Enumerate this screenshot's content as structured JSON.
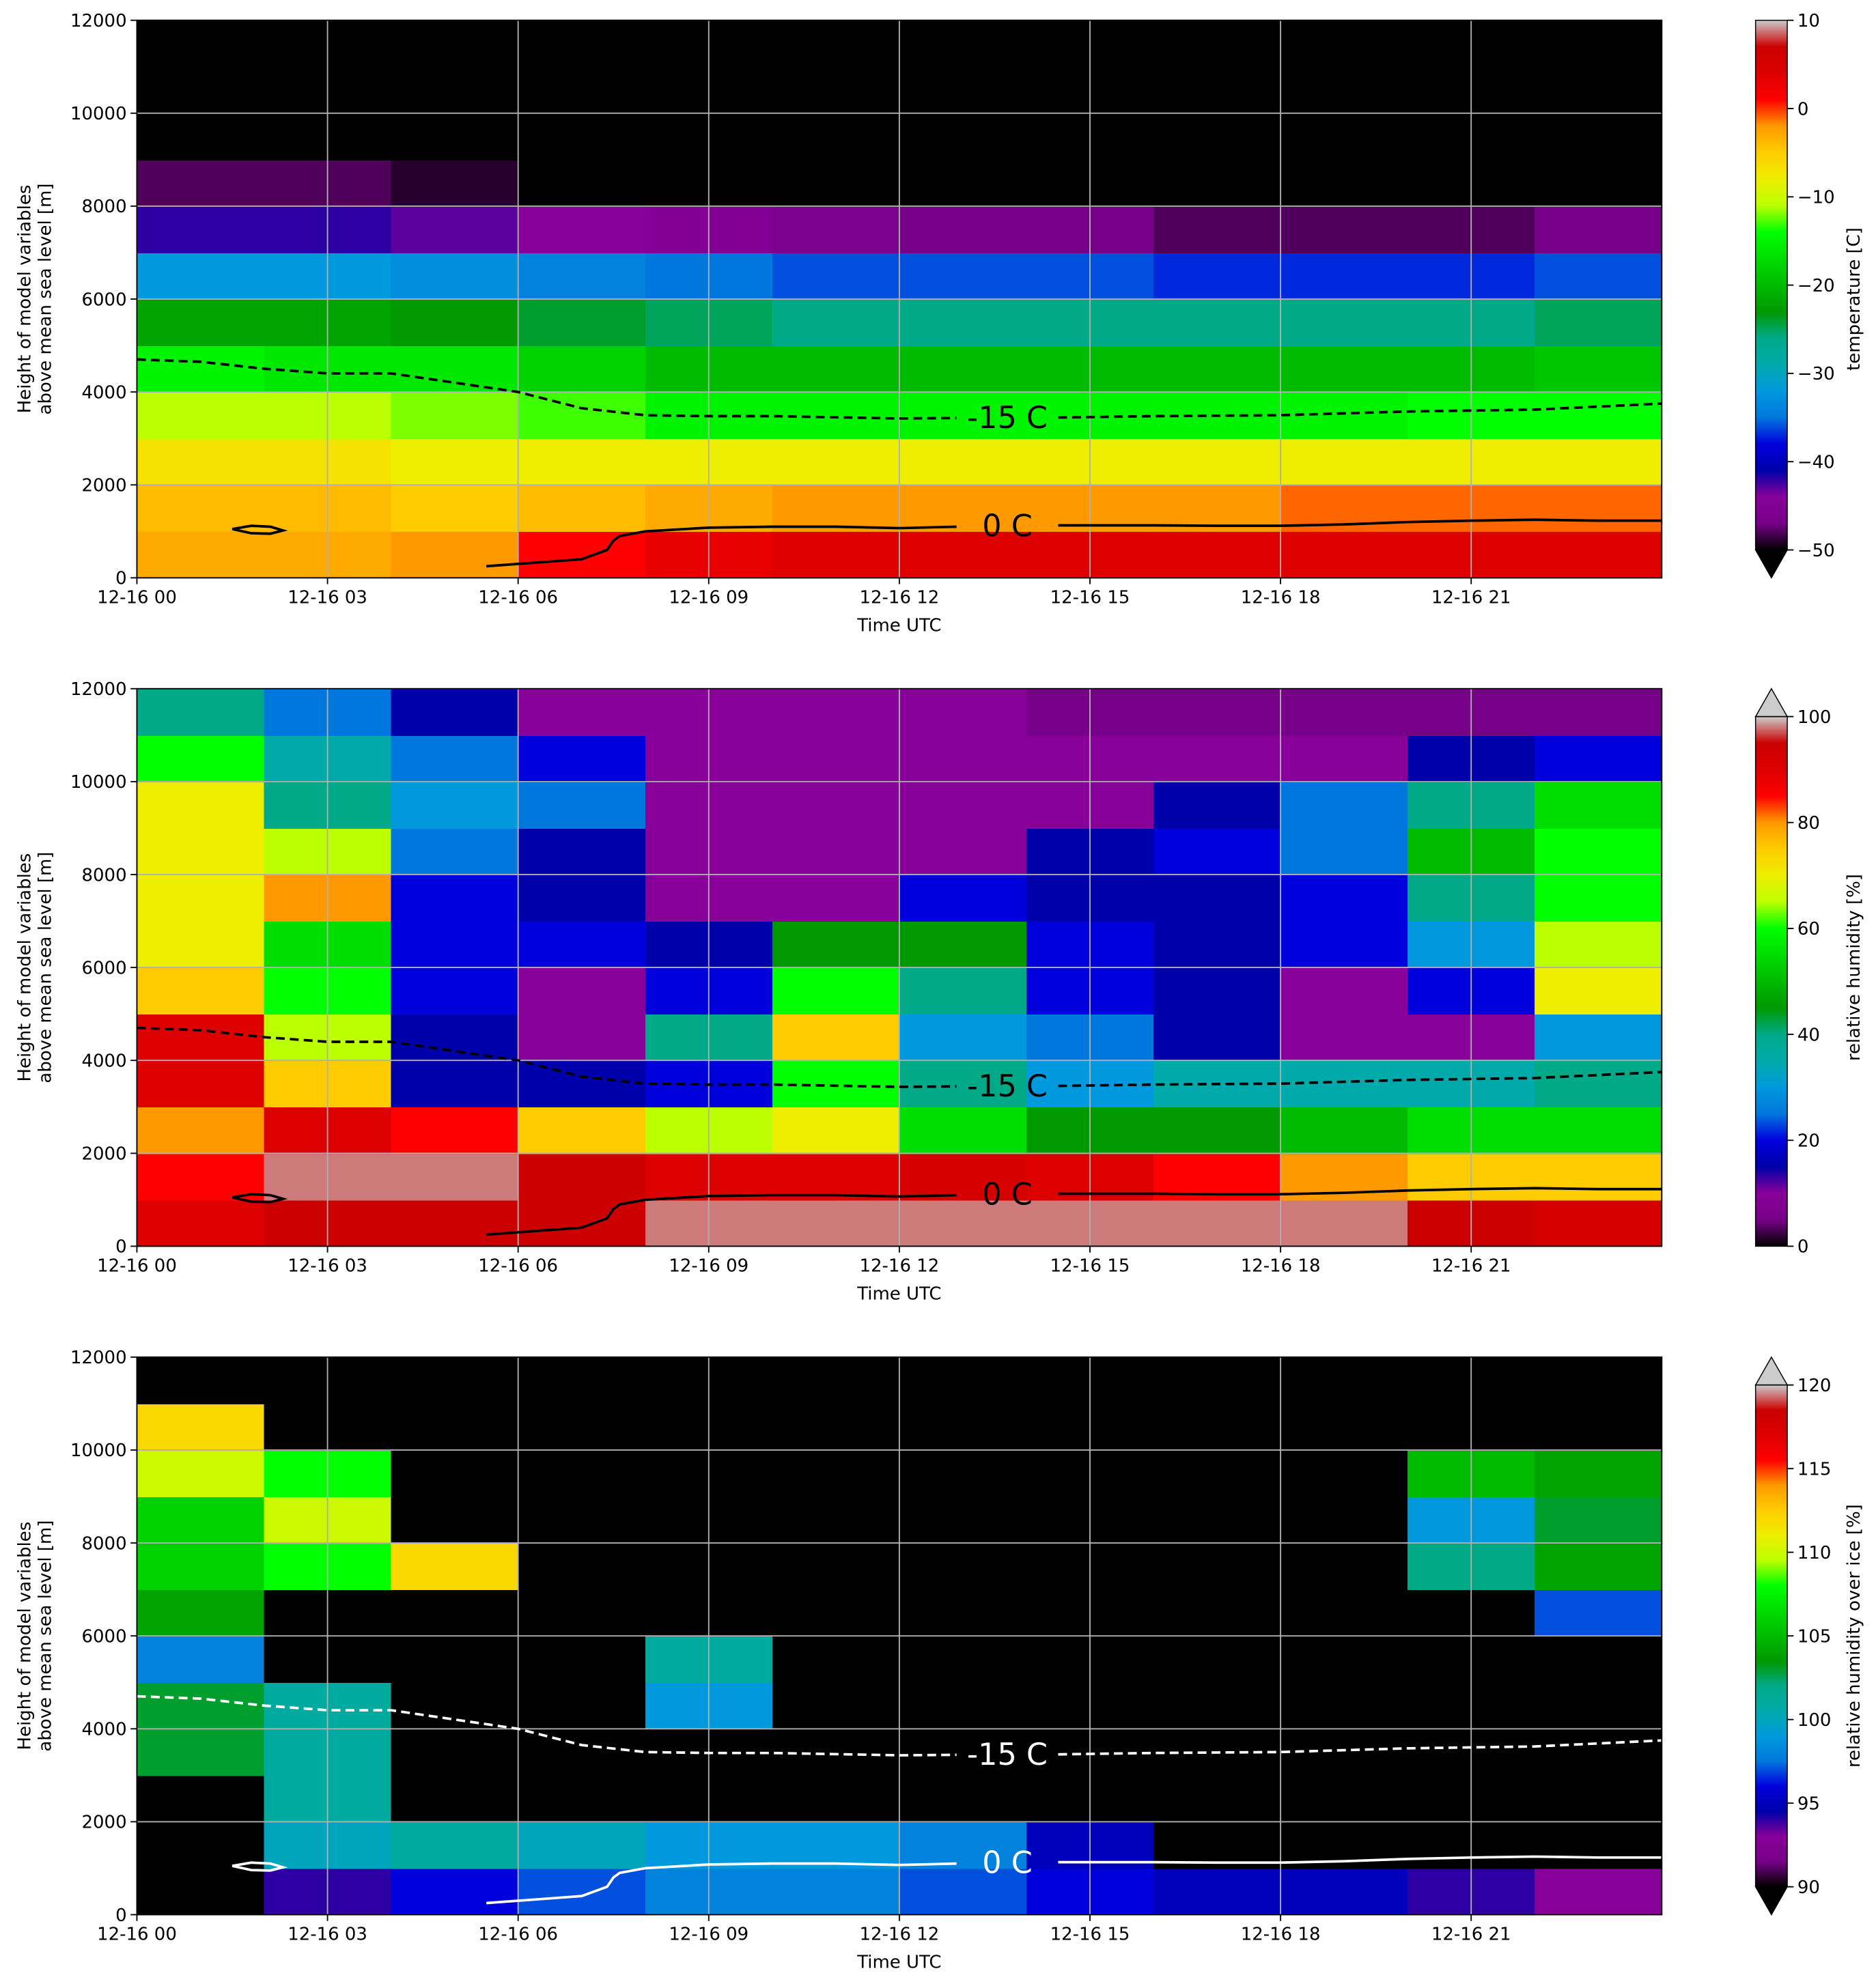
{
  "chart_data": [
    {
      "type": "heatmap",
      "xlabel": "Time UTC",
      "ylabel": [
        "Height of model variables",
        "above mean sea level [m]"
      ],
      "xlim": [
        0,
        24
      ],
      "ylim": [
        0,
        12000
      ],
      "xticks": [
        {
          "value": 0,
          "label": "12-16 00"
        },
        {
          "value": 3,
          "label": "12-16 03"
        },
        {
          "value": 6,
          "label": "12-16 06"
        },
        {
          "value": 9,
          "label": "12-16 09"
        },
        {
          "value": 12,
          "label": "12-16 12"
        },
        {
          "value": 15,
          "label": "12-16 15"
        },
        {
          "value": 18,
          "label": "12-16 18"
        },
        {
          "value": 21,
          "label": "12-16 21"
        }
      ],
      "yticks": [
        0,
        2000,
        4000,
        6000,
        8000,
        10000,
        12000
      ],
      "grid": true,
      "colorbar_label": "temperature [C]",
      "cmap": "nipy_spectral",
      "clim": [
        -50,
        10
      ],
      "extend": "min",
      "cticks": [
        {
          "value": -50,
          "label": "−50"
        },
        {
          "value": -40,
          "label": "−40"
        },
        {
          "value": -30,
          "label": "−30"
        },
        {
          "value": -20,
          "label": "−20"
        },
        {
          "value": -10,
          "label": "−10"
        },
        0,
        10
      ],
      "time_bins": [
        0,
        2,
        4,
        6,
        8,
        10,
        12,
        14,
        16,
        18,
        20,
        22,
        24
      ],
      "height_bins": [
        0,
        1000,
        2000,
        3000,
        4000,
        5000,
        6000,
        7000,
        8000,
        9000,
        10000,
        11000,
        12000
      ],
      "z": [
        [
          -3,
          -3,
          -2,
          1,
          3,
          4,
          4,
          4,
          4,
          4,
          4,
          4
        ],
        [
          -4,
          -4,
          -5,
          -4,
          -3,
          -2,
          -2,
          -2,
          -2,
          -1,
          -1,
          -1
        ],
        [
          -7,
          -7,
          -8,
          -8,
          -8,
          -8,
          -8,
          -8,
          -8,
          -8,
          -8,
          -8
        ],
        [
          -11,
          -11,
          -12,
          -13,
          -15,
          -15,
          -15,
          -15,
          -15,
          -15,
          -14,
          -14
        ],
        [
          -15,
          -16,
          -16,
          -18,
          -20,
          -20,
          -20,
          -20,
          -20,
          -20,
          -20,
          -19
        ],
        [
          -22,
          -22,
          -23,
          -24,
          -25,
          -26,
          -26,
          -26,
          -26,
          -26,
          -26,
          -25
        ],
        [
          -32,
          -32,
          -33,
          -34,
          -35,
          -36,
          -36,
          -36,
          -37,
          -37,
          -37,
          -36
        ],
        [
          -42,
          -42,
          -43,
          -44,
          -45,
          -46,
          -47,
          -47,
          -48,
          -48,
          -48,
          -47
        ],
        [
          -48,
          -48,
          -49,
          -52,
          -55,
          -55,
          -55,
          -56,
          -56,
          -56,
          -56,
          -56
        ],
        [
          -60,
          -60,
          -60,
          -60,
          -60,
          -60,
          -60,
          -60,
          -60,
          -60,
          -60,
          -60
        ],
        [
          -62,
          -62,
          -62,
          -62,
          -62,
          -62,
          -62,
          -62,
          -62,
          -62,
          -62,
          -62
        ],
        [
          -64,
          -64,
          -64,
          -64,
          -64,
          -64,
          -64,
          -64,
          -64,
          -64,
          -64,
          -64
        ]
      ],
      "contour_color": "#000000",
      "contours": [
        {
          "label": "-15 C",
          "style": "dashed",
          "x": [
            0,
            1,
            2,
            3,
            4,
            5,
            6,
            7,
            8,
            9,
            10,
            12,
            12.9,
            13.7,
            14.5,
            16,
            18,
            20,
            22,
            24
          ],
          "values": [
            4700,
            4650,
            4500,
            4400,
            4400,
            4200,
            4000,
            3650,
            3500,
            3480,
            3480,
            3430,
            3440,
            null,
            3450,
            3480,
            3500,
            3580,
            3620,
            3750
          ]
        },
        {
          "label": "0 C",
          "style": "solid",
          "x": [
            5.5,
            6.5,
            7,
            7.4,
            7.5,
            7.6,
            8,
            9,
            10,
            11,
            12,
            12.9,
            13.7,
            14.5,
            15,
            16,
            17,
            18,
            19,
            20,
            21,
            22,
            23,
            24
          ],
          "values": [
            250,
            350,
            400,
            600,
            800,
            900,
            1000,
            1080,
            1100,
            1100,
            1070,
            1100,
            null,
            1130,
            1130,
            1130,
            1120,
            1120,
            1150,
            1200,
            1230,
            1250,
            1230,
            1230
          ]
        },
        {
          "style": "solid",
          "x": [
            1.5,
            1.8,
            2.1,
            2.3,
            2.1,
            1.8,
            1.5
          ],
          "values": [
            1050,
            1120,
            1100,
            1020,
            950,
            960,
            1050
          ]
        }
      ]
    },
    {
      "type": "heatmap",
      "xlabel": "Time UTC",
      "ylabel": [
        "Height of model variables",
        "above mean sea level [m]"
      ],
      "xlim": [
        0,
        24
      ],
      "ylim": [
        0,
        12000
      ],
      "xticks": [
        {
          "value": 0,
          "label": "12-16 00"
        },
        {
          "value": 3,
          "label": "12-16 03"
        },
        {
          "value": 6,
          "label": "12-16 06"
        },
        {
          "value": 9,
          "label": "12-16 09"
        },
        {
          "value": 12,
          "label": "12-16 12"
        },
        {
          "value": 15,
          "label": "12-16 15"
        },
        {
          "value": 18,
          "label": "12-16 18"
        },
        {
          "value": 21,
          "label": "12-16 21"
        }
      ],
      "yticks": [
        0,
        2000,
        4000,
        6000,
        8000,
        10000,
        12000
      ],
      "grid": true,
      "colorbar_label": "relative humidity [%]",
      "cmap": "nipy_spectral",
      "clim": [
        0,
        100
      ],
      "extend": "max",
      "cticks": [
        0,
        20,
        40,
        60,
        80,
        100
      ],
      "time_bins": [
        0,
        2,
        4,
        6,
        8,
        10,
        12,
        14,
        16,
        18,
        20,
        22,
        24
      ],
      "height_bins": [
        0,
        1000,
        2000,
        3000,
        4000,
        5000,
        6000,
        7000,
        8000,
        9000,
        10000,
        11000,
        12000
      ],
      "z": [
        [
          90,
          95,
          95,
          95,
          98,
          98,
          98,
          98,
          98,
          98,
          95,
          92
        ],
        [
          85,
          98,
          98,
          95,
          90,
          90,
          92,
          90,
          85,
          80,
          75,
          75
        ],
        [
          80,
          90,
          85,
          75,
          65,
          70,
          55,
          45,
          45,
          50,
          55,
          55
        ],
        [
          90,
          75,
          15,
          15,
          20,
          60,
          40,
          30,
          35,
          35,
          35,
          40
        ],
        [
          90,
          65,
          15,
          10,
          40,
          75,
          30,
          25,
          15,
          10,
          10,
          30
        ],
        [
          75,
          60,
          20,
          10,
          20,
          60,
          40,
          20,
          15,
          10,
          20,
          70
        ],
        [
          70,
          55,
          20,
          20,
          15,
          45,
          45,
          20,
          15,
          20,
          30,
          65
        ],
        [
          70,
          80,
          20,
          15,
          10,
          10,
          20,
          15,
          15,
          20,
          40,
          60
        ],
        [
          70,
          65,
          25,
          15,
          10,
          10,
          10,
          15,
          20,
          25,
          50,
          60
        ],
        [
          70,
          40,
          30,
          25,
          10,
          10,
          10,
          10,
          15,
          25,
          40,
          55
        ],
        [
          60,
          35,
          25,
          20,
          10,
          10,
          10,
          10,
          10,
          10,
          15,
          20
        ],
        [
          40,
          25,
          15,
          10,
          10,
          10,
          10,
          5,
          5,
          5,
          5,
          5
        ]
      ],
      "contour_color": "#000000",
      "contours": [
        {
          "label": "-15 C",
          "style": "dashed",
          "x": [
            0,
            1,
            2,
            3,
            4,
            5,
            6,
            7,
            8,
            9,
            10,
            12,
            12.9,
            13.7,
            14.5,
            16,
            18,
            20,
            22,
            24
          ],
          "values": [
            4700,
            4650,
            4500,
            4400,
            4400,
            4200,
            4000,
            3650,
            3500,
            3480,
            3480,
            3430,
            3440,
            null,
            3450,
            3480,
            3500,
            3580,
            3620,
            3750
          ]
        },
        {
          "label": "0 C",
          "style": "solid",
          "x": [
            5.5,
            6.5,
            7,
            7.4,
            7.5,
            7.6,
            8,
            9,
            10,
            11,
            12,
            12.9,
            13.7,
            14.5,
            15,
            16,
            17,
            18,
            19,
            20,
            21,
            22,
            23,
            24
          ],
          "values": [
            250,
            350,
            400,
            600,
            800,
            900,
            1000,
            1080,
            1100,
            1100,
            1070,
            1100,
            null,
            1130,
            1130,
            1130,
            1120,
            1120,
            1150,
            1200,
            1230,
            1250,
            1230,
            1230
          ]
        },
        {
          "style": "solid",
          "x": [
            1.5,
            1.8,
            2.1,
            2.3,
            2.1,
            1.8,
            1.5
          ],
          "values": [
            1050,
            1120,
            1100,
            1020,
            950,
            960,
            1050
          ]
        }
      ]
    },
    {
      "type": "heatmap",
      "xlabel": "Time UTC",
      "ylabel": [
        "Height of model variables",
        "above mean sea level [m]"
      ],
      "xlim": [
        0,
        24
      ],
      "ylim": [
        0,
        12000
      ],
      "xticks": [
        {
          "value": 0,
          "label": "12-16 00"
        },
        {
          "value": 3,
          "label": "12-16 03"
        },
        {
          "value": 6,
          "label": "12-16 06"
        },
        {
          "value": 9,
          "label": "12-16 09"
        },
        {
          "value": 12,
          "label": "12-16 12"
        },
        {
          "value": 15,
          "label": "12-16 15"
        },
        {
          "value": 18,
          "label": "12-16 18"
        },
        {
          "value": 21,
          "label": "12-16 21"
        }
      ],
      "yticks": [
        0,
        2000,
        4000,
        6000,
        8000,
        10000,
        12000
      ],
      "grid": true,
      "colorbar_label": "relative humidity over ice [%]",
      "cmap": "nipy_spectral",
      "clim": [
        90,
        120
      ],
      "extend": "both",
      "cticks": [
        90,
        95,
        100,
        105,
        110,
        115,
        120
      ],
      "time_bins": [
        0,
        2,
        4,
        6,
        8,
        10,
        12,
        14,
        16,
        18,
        20,
        22,
        24
      ],
      "height_bins": [
        0,
        1000,
        2000,
        3000,
        4000,
        5000,
        6000,
        7000,
        8000,
        9000,
        10000,
        11000,
        12000
      ],
      "z": [
        [
          80,
          94,
          96,
          97,
          98,
          98,
          97,
          96,
          95,
          95,
          94,
          93
        ],
        [
          80,
          100,
          101,
          100,
          99,
          99,
          98,
          95,
          88,
          85,
          85,
          85
        ],
        [
          85,
          101,
          85,
          80,
          80,
          80,
          80,
          80,
          80,
          80,
          80,
          80
        ],
        [
          103,
          101,
          80,
          80,
          80,
          80,
          80,
          80,
          80,
          80,
          80,
          80
        ],
        [
          103,
          101,
          80,
          80,
          99,
          80,
          80,
          80,
          80,
          80,
          80,
          80
        ],
        [
          98,
          80,
          80,
          80,
          101,
          80,
          80,
          80,
          80,
          80,
          80,
          80
        ],
        [
          104,
          80,
          80,
          80,
          80,
          80,
          80,
          80,
          80,
          80,
          80,
          97
        ],
        [
          106,
          108,
          112,
          80,
          80,
          80,
          80,
          80,
          80,
          80,
          102,
          104
        ],
        [
          106,
          110,
          80,
          80,
          80,
          80,
          80,
          80,
          80,
          80,
          99,
          103
        ],
        [
          110,
          108,
          80,
          80,
          80,
          80,
          80,
          80,
          80,
          80,
          105,
          104
        ],
        [
          112,
          80,
          80,
          80,
          80,
          80,
          80,
          80,
          80,
          80,
          80,
          80
        ],
        [
          80,
          80,
          80,
          80,
          80,
          80,
          80,
          80,
          80,
          80,
          80,
          80
        ]
      ],
      "contour_color": "#ffffff",
      "contours": [
        {
          "label": "-15 C",
          "style": "dashed",
          "x": [
            0,
            1,
            2,
            3,
            4,
            5,
            6,
            7,
            8,
            9,
            10,
            12,
            12.9,
            13.7,
            14.5,
            16,
            18,
            20,
            22,
            24
          ],
          "values": [
            4700,
            4650,
            4500,
            4400,
            4400,
            4200,
            4000,
            3650,
            3500,
            3480,
            3480,
            3430,
            3440,
            null,
            3450,
            3480,
            3500,
            3580,
            3620,
            3750
          ]
        },
        {
          "label": "0 C",
          "style": "solid",
          "x": [
            5.5,
            6.5,
            7,
            7.4,
            7.5,
            7.6,
            8,
            9,
            10,
            11,
            12,
            12.9,
            13.7,
            14.5,
            15,
            16,
            17,
            18,
            19,
            20,
            21,
            22,
            23,
            24
          ],
          "values": [
            250,
            350,
            400,
            600,
            800,
            900,
            1000,
            1080,
            1100,
            1100,
            1070,
            1100,
            null,
            1130,
            1130,
            1130,
            1120,
            1120,
            1150,
            1200,
            1230,
            1250,
            1230,
            1230
          ]
        },
        {
          "style": "solid",
          "x": [
            1.5,
            1.8,
            2.1,
            2.3,
            2.1,
            1.8,
            1.5
          ],
          "values": [
            1050,
            1120,
            1100,
            1020,
            950,
            960,
            1050
          ]
        }
      ]
    }
  ]
}
